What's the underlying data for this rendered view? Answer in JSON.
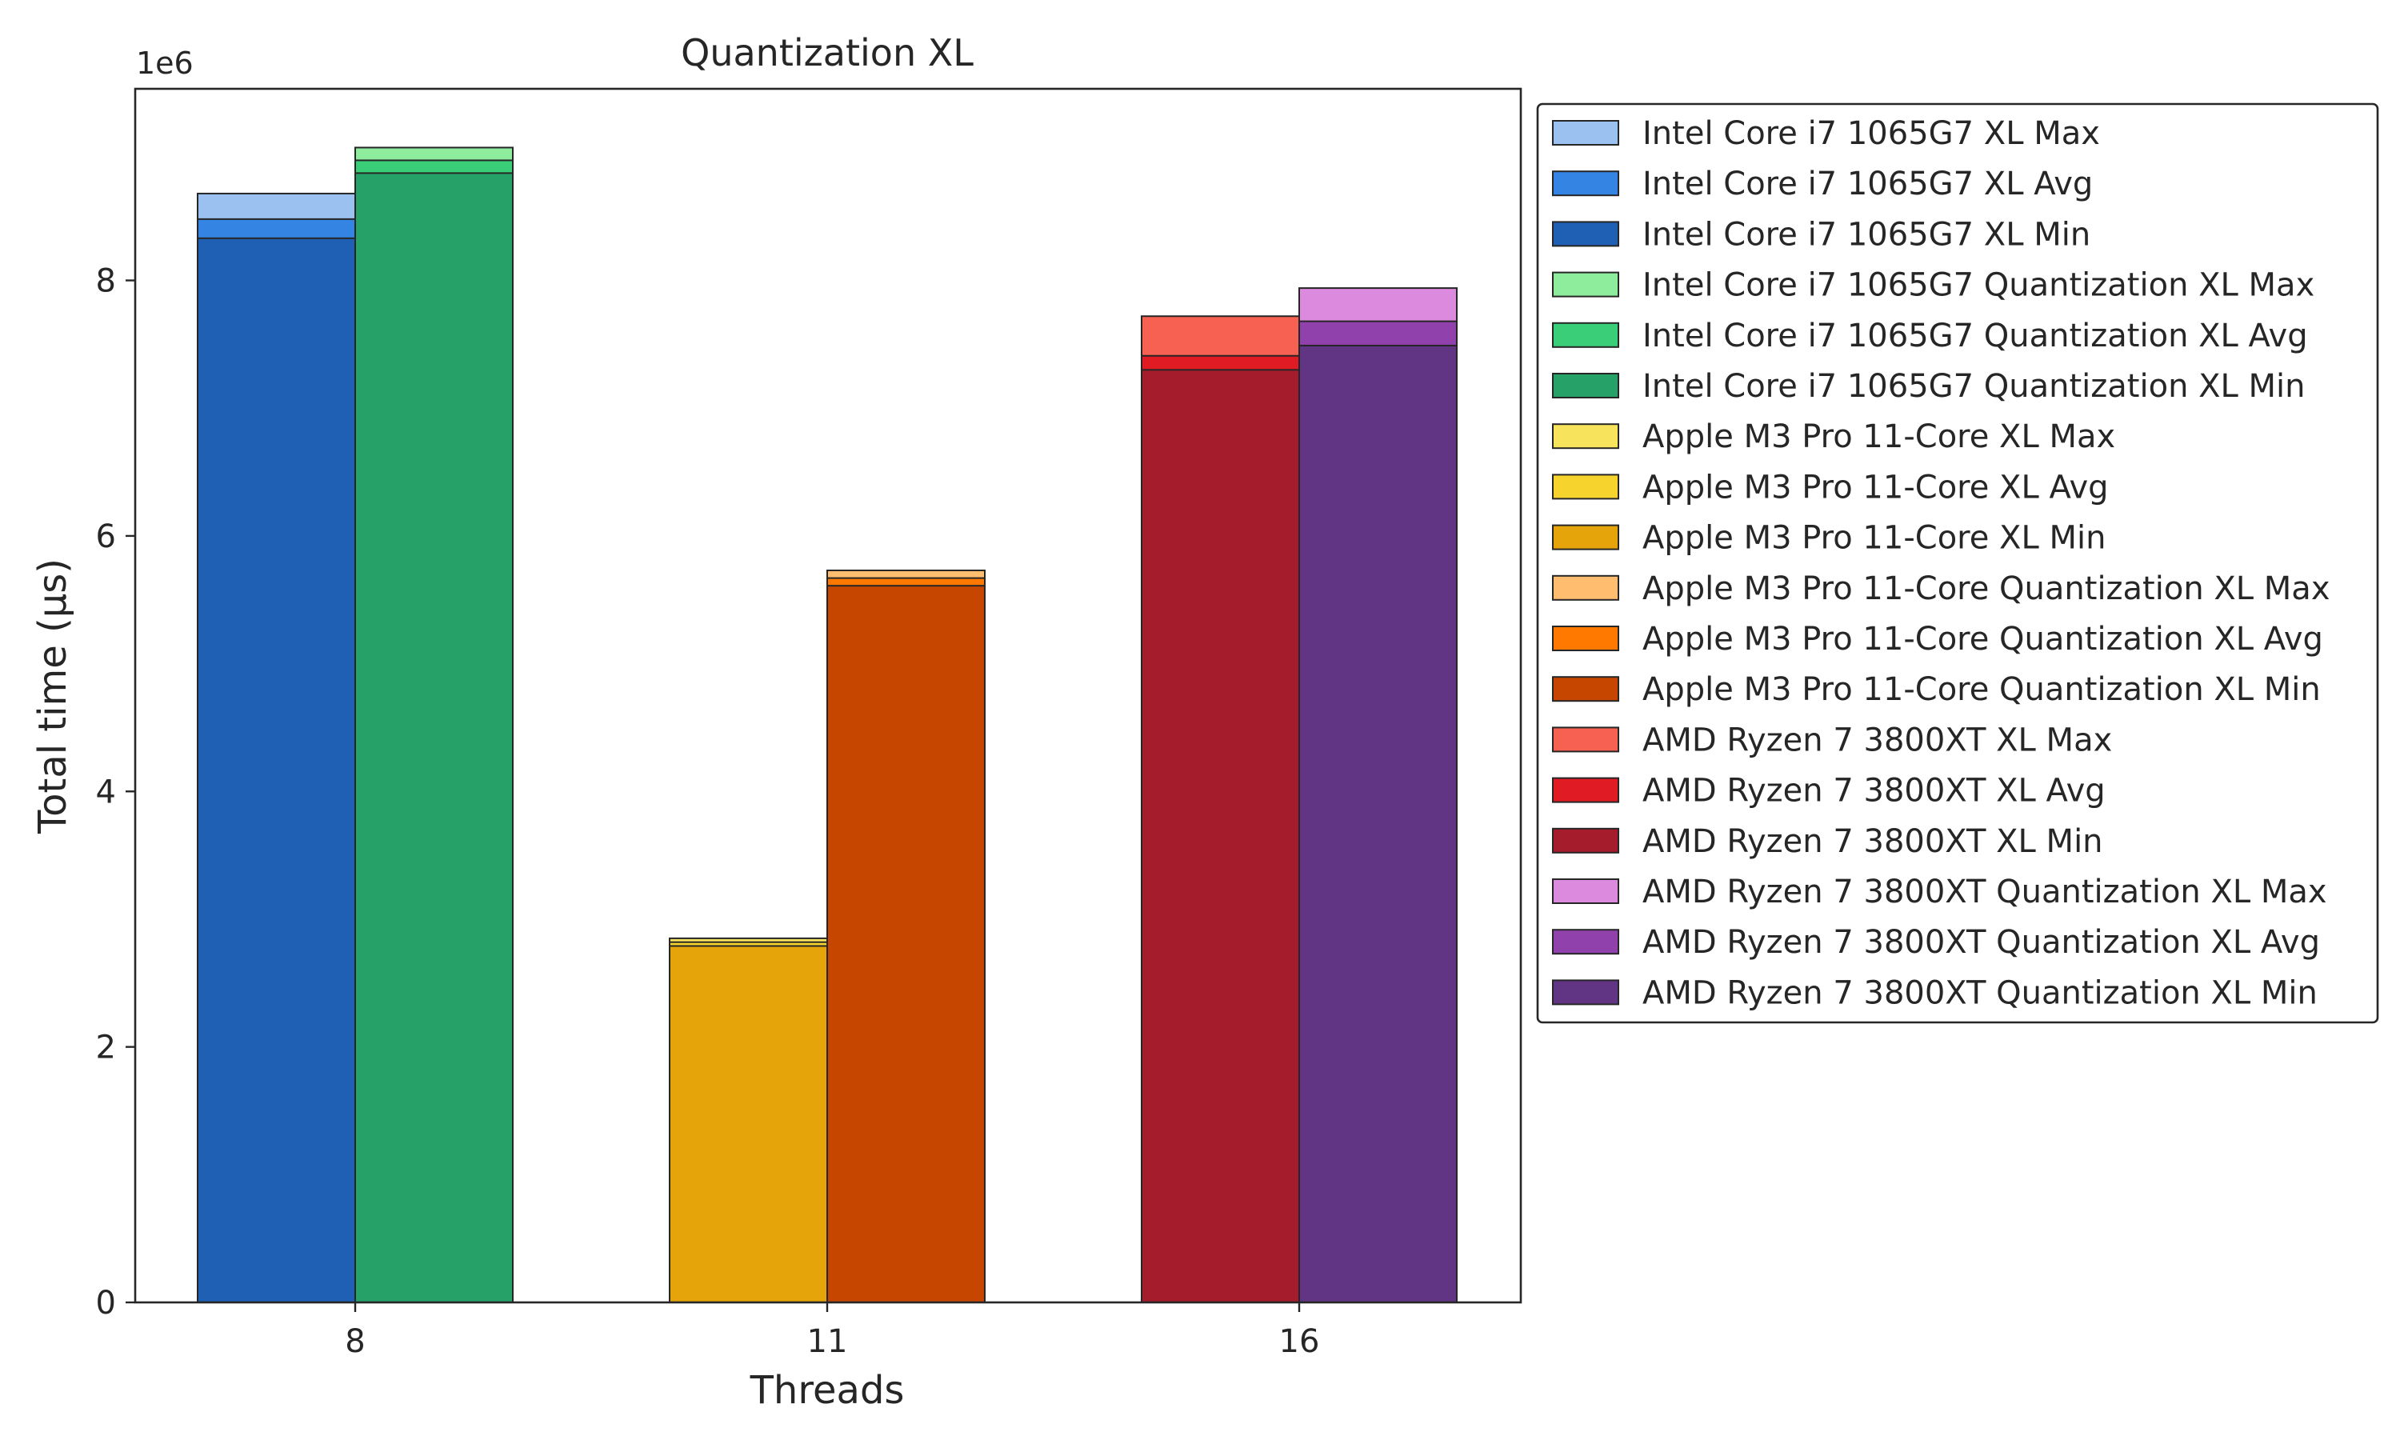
{
  "chart_data": {
    "type": "bar",
    "title": "Quantization XL",
    "xlabel": "Threads",
    "ylabel": "Total time (µs)",
    "y_exponent_label": "1e6",
    "ylim": [
      0,
      9500000
    ],
    "y_ticks": [
      0,
      2,
      4,
      6,
      8
    ],
    "categories": [
      "8",
      "11",
      "16"
    ],
    "grid": false,
    "legend_position": "outside-right",
    "groups": [
      {
        "category": "8",
        "bars": [
          {
            "min": 8330000,
            "avg": 8480000,
            "max": 8680000,
            "colors": {
              "max": "#9bc1f0",
              "avg": "#3484e4",
              "min": "#1f5fb4"
            }
          },
          {
            "min": 8840000,
            "avg": 8940000,
            "max": 9040000,
            "colors": {
              "max": "#8ded9d",
              "avg": "#3ace79",
              "min": "#26a269"
            }
          }
        ]
      },
      {
        "category": "11",
        "bars": [
          {
            "min": 2790000,
            "avg": 2820000,
            "max": 2850000,
            "colors": {
              "max": "#f8e45c",
              "avg": "#f6d32d",
              "min": "#e5a50a"
            }
          },
          {
            "min": 5610000,
            "avg": 5670000,
            "max": 5730000,
            "colors": {
              "max": "#ffbe6f",
              "avg": "#ff7800",
              "min": "#c64600"
            }
          }
        ]
      },
      {
        "category": "16",
        "bars": [
          {
            "min": 7300000,
            "avg": 7410000,
            "max": 7720000,
            "colors": {
              "max": "#f66151",
              "avg": "#e01b24",
              "min": "#a51d2d"
            }
          },
          {
            "min": 7490000,
            "avg": 7680000,
            "max": 7940000,
            "colors": {
              "max": "#dc8add",
              "avg": "#9141ac",
              "min": "#613583"
            }
          }
        ]
      }
    ],
    "legend": [
      {
        "label": "Intel Core i7 1065G7 XL Max",
        "color": "#9bc1f0"
      },
      {
        "label": "Intel Core i7 1065G7 XL Avg",
        "color": "#3484e4"
      },
      {
        "label": "Intel Core i7 1065G7 XL Min",
        "color": "#1f5fb4"
      },
      {
        "label": "Intel Core i7 1065G7 Quantization XL Max",
        "color": "#8ded9d"
      },
      {
        "label": "Intel Core i7 1065G7 Quantization XL Avg",
        "color": "#3ace79"
      },
      {
        "label": "Intel Core i7 1065G7 Quantization XL Min",
        "color": "#26a269"
      },
      {
        "label": "Apple M3 Pro 11-Core XL Max",
        "color": "#f8e45c"
      },
      {
        "label": "Apple M3 Pro 11-Core XL Avg",
        "color": "#f6d32d"
      },
      {
        "label": "Apple M3 Pro 11-Core XL Min",
        "color": "#e5a50a"
      },
      {
        "label": "Apple M3 Pro 11-Core Quantization XL Max",
        "color": "#ffbe6f"
      },
      {
        "label": "Apple M3 Pro 11-Core Quantization XL Avg",
        "color": "#ff7800"
      },
      {
        "label": "Apple M3 Pro 11-Core Quantization XL Min",
        "color": "#c64600"
      },
      {
        "label": "AMD Ryzen 7 3800XT XL Max",
        "color": "#f66151"
      },
      {
        "label": "AMD Ryzen 7 3800XT XL Avg",
        "color": "#e01b24"
      },
      {
        "label": "AMD Ryzen 7 3800XT XL Min",
        "color": "#a51d2d"
      },
      {
        "label": "AMD Ryzen 7 3800XT Quantization XL Max",
        "color": "#dc8add"
      },
      {
        "label": "AMD Ryzen 7 3800XT Quantization XL Avg",
        "color": "#9141ac"
      },
      {
        "label": "AMD Ryzen 7 3800XT Quantization XL Min",
        "color": "#613583"
      }
    ]
  }
}
